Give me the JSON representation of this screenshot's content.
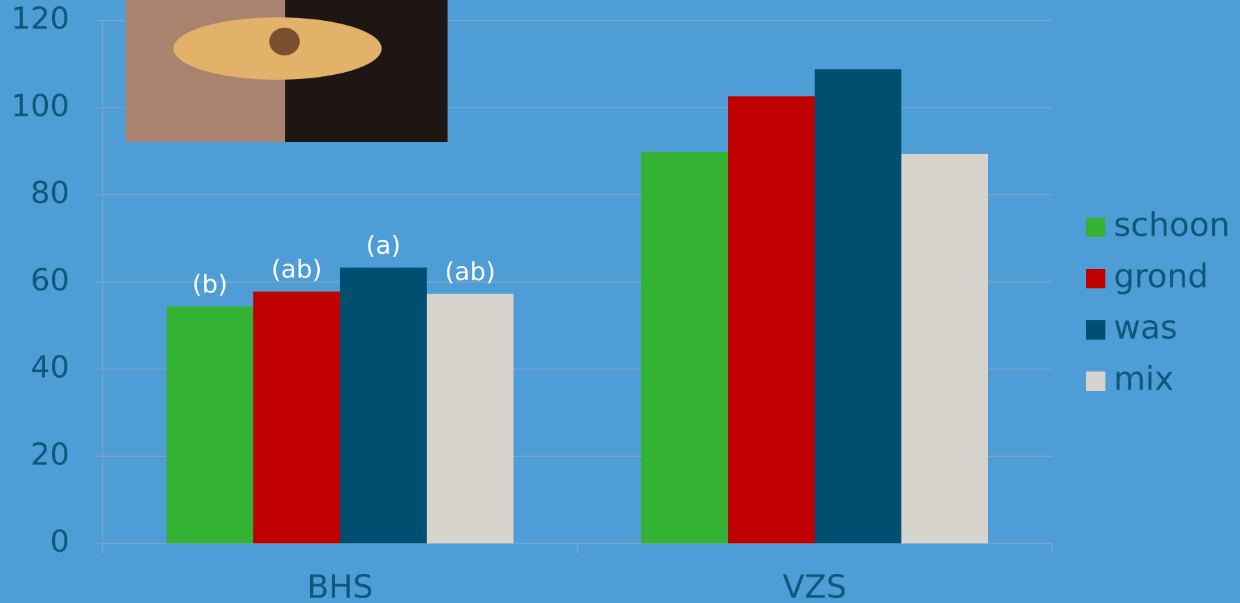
{
  "chart_data": {
    "type": "bar",
    "categories": [
      "BHS",
      "VZS"
    ],
    "series": [
      {
        "name": "schoon",
        "color": "#34b233",
        "values": [
          54.4,
          89.9
        ],
        "labels": [
          "(b)",
          null
        ]
      },
      {
        "name": "grond",
        "color": "#c00000",
        "values": [
          57.8,
          102.6
        ],
        "labels": [
          "(ab)",
          null
        ]
      },
      {
        "name": "was",
        "color": "#004f71",
        "values": [
          63.3,
          108.8
        ],
        "labels": [
          "(a)",
          null
        ]
      },
      {
        "name": "mix",
        "color": "#d6d3cc",
        "values": [
          57.3,
          89.4
        ],
        "labels": [
          "(ab)",
          null
        ]
      }
    ],
    "ylim": [
      0,
      120
    ],
    "yticks": [
      0,
      20,
      40,
      60,
      80,
      100,
      120
    ],
    "grid": true,
    "legend": "right"
  }
}
